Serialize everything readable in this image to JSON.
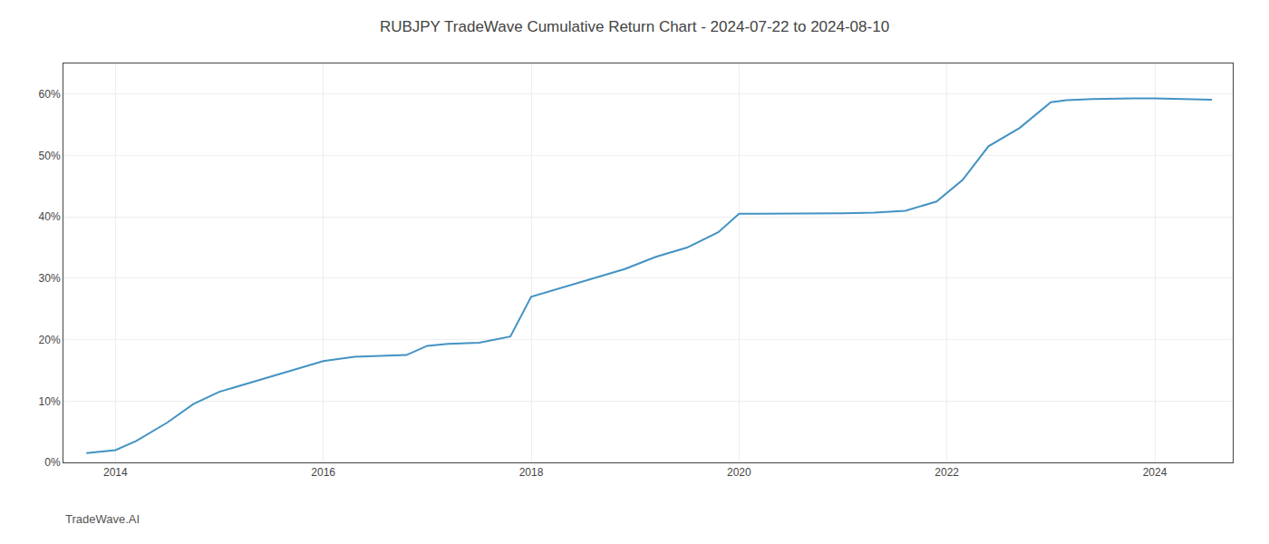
{
  "chart_data": {
    "type": "line",
    "title": "RUBJPY TradeWave Cumulative Return Chart - 2024-07-22 to 2024-08-10",
    "annotations": [
      {
        "text": "TradeWave.AI"
      }
    ],
    "x": [
      2013.72,
      2014.0,
      2014.2,
      2014.5,
      2014.75,
      2015.0,
      2015.3,
      2015.6,
      2016.0,
      2016.3,
      2016.5,
      2016.8,
      2017.0,
      2017.2,
      2017.5,
      2017.8,
      2018.0,
      2018.3,
      2018.6,
      2018.9,
      2019.2,
      2019.5,
      2019.8,
      2020.0,
      2020.15,
      2020.5,
      2020.8,
      2021.0,
      2021.3,
      2021.6,
      2021.9,
      2022.15,
      2022.4,
      2022.7,
      2023.0,
      2023.15,
      2023.4,
      2023.6,
      2023.8,
      2024.0,
      2024.3,
      2024.55
    ],
    "values": [
      1.5,
      2.0,
      3.5,
      6.5,
      9.5,
      11.5,
      13.0,
      14.5,
      16.5,
      17.2,
      17.3,
      17.5,
      19.0,
      19.3,
      19.5,
      20.5,
      27.0,
      28.5,
      30.0,
      31.5,
      33.5,
      35.0,
      37.5,
      40.5,
      40.5,
      40.5,
      40.5,
      40.6,
      40.7,
      41.0,
      42.5,
      46.0,
      51.5,
      54.5,
      58.7,
      59.0,
      59.2,
      59.3,
      59.3,
      59.3,
      59.2,
      59.1
    ],
    "color": "#4393c3",
    "xlim": [
      2013.5,
      2024.75
    ],
    "ylim": [
      0,
      65
    ],
    "xticks": [
      2014,
      2016,
      2018,
      2020,
      2022,
      2024
    ],
    "yticks": [
      {
        "value": 0,
        "label": "0%"
      },
      {
        "value": 10,
        "label": "10%"
      },
      {
        "value": 20,
        "label": "20%"
      },
      {
        "value": 30,
        "label": "30%"
      },
      {
        "value": 40,
        "label": "40%"
      },
      {
        "value": 50,
        "label": "50%"
      },
      {
        "value": 60,
        "label": "60%"
      }
    ],
    "grid": true
  }
}
